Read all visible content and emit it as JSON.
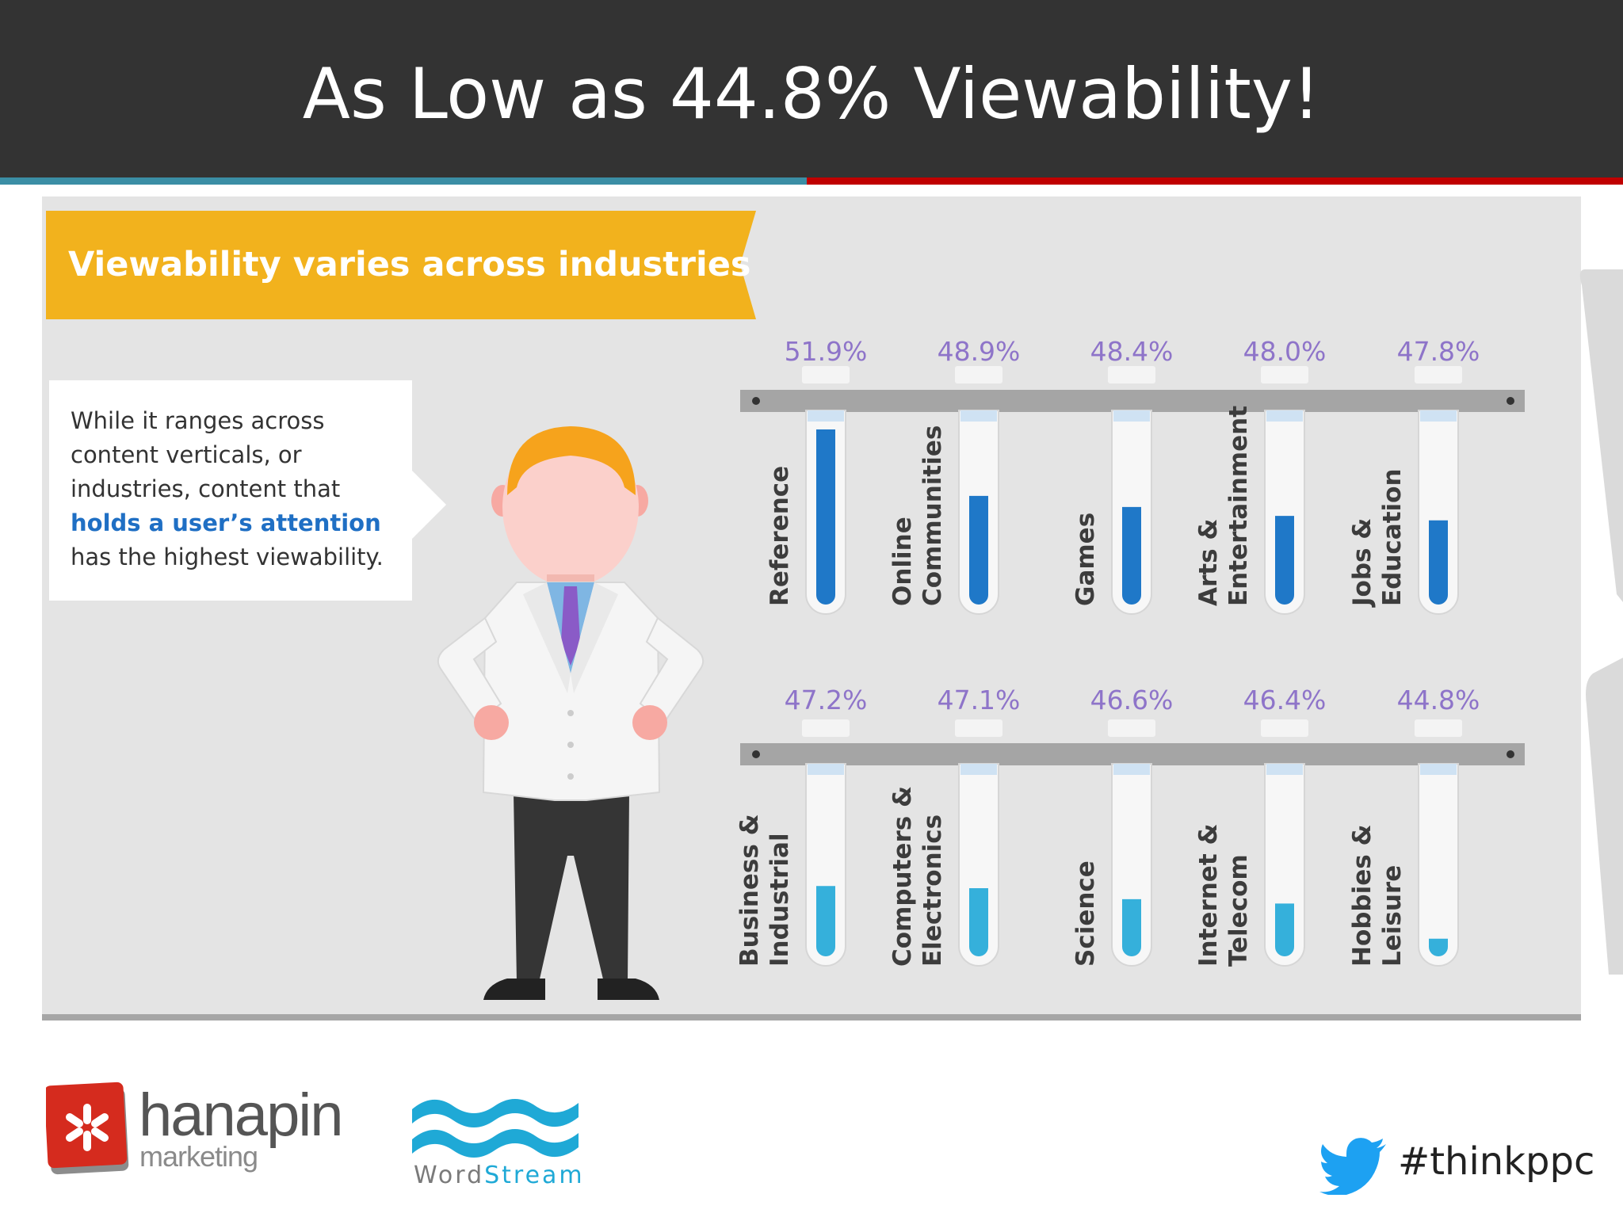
{
  "slide": {
    "title": "As Low as 44.8% Viewability!",
    "hashtag": "#thinkppc"
  },
  "colors": {
    "header_bg": "#333333",
    "rule_left": "#3b8ea5",
    "rule_right": "#c00000",
    "panel_bg": "#e4e4e4",
    "banner": "#f2b21d",
    "value_label": "#8e74c9",
    "fill_top_row": "#1f78c8",
    "fill_bottom_row": "#35b0db",
    "rack": "#a5a5a5",
    "twitter": "#1da1f2",
    "hanapin_red": "#d52b1e",
    "wordstream_blue": "#1fa9d6"
  },
  "callout": {
    "line1": "While it ranges across",
    "line2": "content verticals, or",
    "line3": "industries, content that",
    "highlight": "holds a user’s attention",
    "line5": "has the highest viewability."
  },
  "logos": {
    "hanapin_name": "hanapin",
    "hanapin_sub": "marketing",
    "wordstream_word": "Word",
    "wordstream_stream": "Stream"
  },
  "icons": [
    "twitter-bird-icon",
    "hanapin-logo-icon",
    "wordstream-wave-icon"
  ],
  "chart_data": {
    "type": "bar",
    "title": "Viewability varies across industries",
    "unit": "%",
    "categories": [
      [
        "Reference"
      ],
      [
        "Online",
        "Communities"
      ],
      [
        "Games"
      ],
      [
        "Arts &",
        "Entertainment"
      ],
      [
        "Jobs &",
        "Education"
      ],
      [
        "Business &",
        "Industrial"
      ],
      [
        "Computers &",
        "Electronics"
      ],
      [
        "Science"
      ],
      [
        "Internet &",
        "Telecom"
      ],
      [
        "Hobbies &",
        "Leisure"
      ]
    ],
    "values": [
      51.9,
      48.9,
      48.4,
      48.0,
      47.8,
      47.2,
      47.1,
      46.6,
      46.4,
      44.8
    ],
    "labels": [
      "51.9%",
      "48.9%",
      "48.4%",
      "48.0%",
      "47.8%",
      "47.2%",
      "47.1%",
      "46.6%",
      "46.4%",
      "44.8%"
    ],
    "ylim": [
      44.0,
      52.4
    ],
    "rows": 2,
    "per_row": 5,
    "grid": false,
    "legend": "none"
  }
}
